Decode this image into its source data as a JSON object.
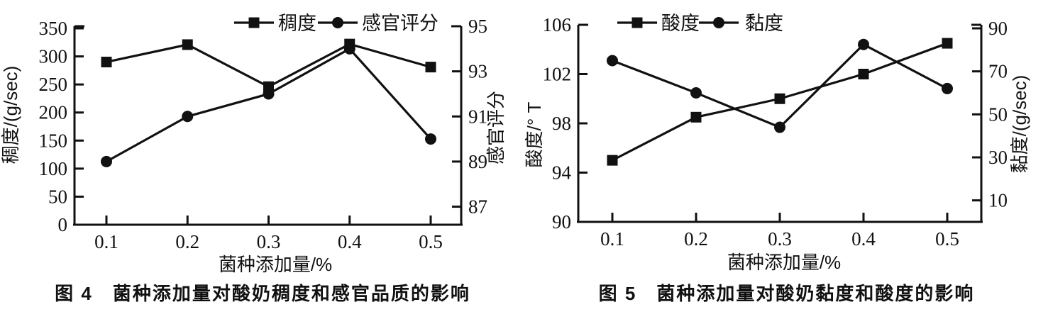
{
  "page": {
    "background": "#ffffff",
    "ink_color": "#111111"
  },
  "figures": [
    {
      "caption": "图 4　菌种添加量对酸奶稠度和感官品质的影响"
    },
    {
      "caption": "图 5　菌种添加量对酸奶黏度和酸度的影响"
    }
  ],
  "chart_data": [
    {
      "type": "line",
      "title": "",
      "x": [
        0.1,
        0.2,
        0.3,
        0.4,
        0.5
      ],
      "x_tick_labels": [
        "0.1",
        "0.2",
        "0.3",
        "0.4",
        "0.5"
      ],
      "xlabel": "菌种添加量/%",
      "left_axis": {
        "label": "稠度/(g/sec)",
        "range": [
          0,
          350
        ],
        "ticks": [
          0,
          50,
          100,
          150,
          200,
          250,
          300,
          350
        ]
      },
      "right_axis": {
        "label": "感官评分",
        "range": [
          86.2,
          95
        ],
        "ticks": [
          87,
          89,
          91,
          93,
          95
        ]
      },
      "series": [
        {
          "name": "稠度",
          "axis": "left",
          "marker": "square",
          "values": [
            290,
            321,
            246,
            322,
            281
          ]
        },
        {
          "name": "感官评分",
          "axis": "right",
          "marker": "circle",
          "values": [
            89,
            91,
            92,
            94,
            90
          ]
        }
      ],
      "legend_position": "top",
      "grid": false,
      "line_color": "#111111"
    },
    {
      "type": "line",
      "title": "",
      "x": [
        0.1,
        0.2,
        0.3,
        0.4,
        0.5
      ],
      "x_tick_labels": [
        "0.1",
        "0.2",
        "0.3",
        "0.4",
        "0.5"
      ],
      "xlabel": "菌种添加量/%",
      "left_axis": {
        "label": "酸度/° T",
        "range": [
          90,
          106
        ],
        "ticks": [
          90,
          94,
          98,
          102,
          106
        ]
      },
      "right_axis": {
        "label": "黏度/(g/sec)",
        "range": [
          0,
          90
        ],
        "ticks": [
          10,
          30,
          50,
          70,
          90
        ]
      },
      "series": [
        {
          "name": "酸度",
          "axis": "left",
          "marker": "square",
          "values": [
            95,
            98.5,
            100,
            102,
            104.5
          ]
        },
        {
          "name": "黏度",
          "axis": "right",
          "marker": "circle",
          "values": [
            75,
            60,
            44,
            82.5,
            62
          ]
        }
      ],
      "legend_position": "top",
      "grid": false,
      "line_color": "#111111"
    }
  ]
}
